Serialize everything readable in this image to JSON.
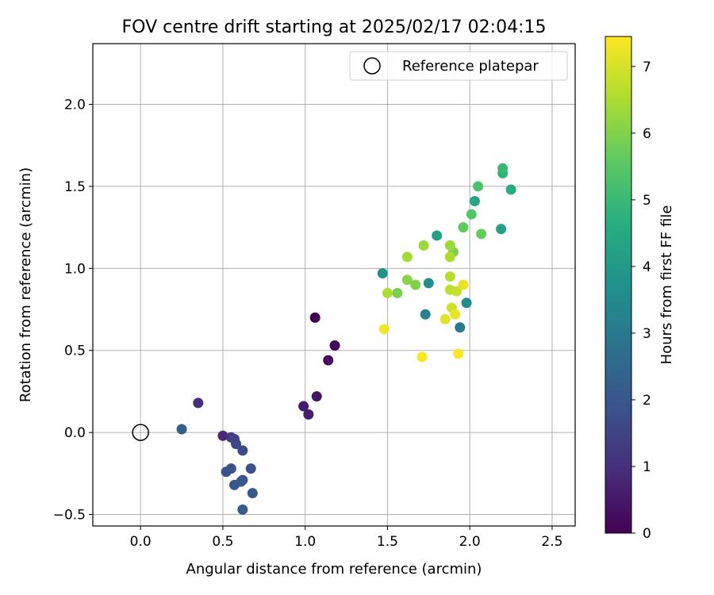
{
  "chart_data": {
    "type": "scatter",
    "title": "FOV centre drift starting at 2025/02/17 02:04:15",
    "xlabel": "Angular distance from reference (arcmin)",
    "ylabel": "Rotation from reference (arcmin)",
    "xlim": [
      -0.29,
      2.64
    ],
    "ylim": [
      -0.57,
      2.37
    ],
    "xticks": [
      0.0,
      0.5,
      1.0,
      1.5,
      2.0,
      2.5
    ],
    "xtick_labels": [
      "0.0",
      "0.5",
      "1.0",
      "1.5",
      "2.0",
      "2.5"
    ],
    "yticks": [
      -0.5,
      0.0,
      0.5,
      1.0,
      1.5,
      2.0
    ],
    "ytick_labels": [
      "−0.5",
      "0.0",
      "0.5",
      "1.0",
      "1.5",
      "2.0"
    ],
    "grid": true,
    "legend": {
      "placement": "upper-right",
      "entries": [
        {
          "label": "Reference platepar",
          "marker": "open-circle"
        }
      ]
    },
    "reference_point": {
      "x": 0.0,
      "y": 0.0
    },
    "colorbar": {
      "label": "Hours from first FF file",
      "colormap": "viridis",
      "range": [
        0,
        7.45
      ],
      "ticks": [
        0,
        1,
        2,
        3,
        4,
        5,
        6,
        7
      ],
      "tick_labels": [
        "0",
        "1",
        "2",
        "3",
        "4",
        "5",
        "6",
        "7"
      ]
    },
    "points": [
      {
        "x": 1.06,
        "y": 0.7,
        "h": 0.0
      },
      {
        "x": 1.18,
        "y": 0.53,
        "h": 0.1
      },
      {
        "x": 1.14,
        "y": 0.44,
        "h": 0.2
      },
      {
        "x": 1.07,
        "y": 0.22,
        "h": 0.4
      },
      {
        "x": 0.99,
        "y": 0.16,
        "h": 0.5
      },
      {
        "x": 1.02,
        "y": 0.11,
        "h": 0.6
      },
      {
        "x": 0.5,
        "y": -0.02,
        "h": 0.8
      },
      {
        "x": 0.35,
        "y": 0.18,
        "h": 1.0
      },
      {
        "x": 0.55,
        "y": -0.03,
        "h": 1.2
      },
      {
        "x": 0.57,
        "y": -0.04,
        "h": 1.5
      },
      {
        "x": 0.58,
        "y": -0.07,
        "h": 1.6
      },
      {
        "x": 0.62,
        "y": -0.11,
        "h": 1.7
      },
      {
        "x": 0.67,
        "y": -0.22,
        "h": 1.8
      },
      {
        "x": 0.55,
        "y": -0.22,
        "h": 1.8
      },
      {
        "x": 0.52,
        "y": -0.24,
        "h": 1.9
      },
      {
        "x": 0.62,
        "y": -0.29,
        "h": 1.9
      },
      {
        "x": 0.61,
        "y": -0.3,
        "h": 2.0
      },
      {
        "x": 0.57,
        "y": -0.32,
        "h": 2.0
      },
      {
        "x": 0.68,
        "y": -0.37,
        "h": 2.1
      },
      {
        "x": 0.62,
        "y": -0.47,
        "h": 2.1
      },
      {
        "x": 0.25,
        "y": 0.02,
        "h": 2.2
      },
      {
        "x": 1.94,
        "y": 0.64,
        "h": 3.1
      },
      {
        "x": 1.73,
        "y": 0.72,
        "h": 3.3
      },
      {
        "x": 1.98,
        "y": 0.79,
        "h": 3.6
      },
      {
        "x": 1.75,
        "y": 0.91,
        "h": 3.7
      },
      {
        "x": 1.47,
        "y": 0.97,
        "h": 3.8
      },
      {
        "x": 2.19,
        "y": 1.24,
        "h": 4.2
      },
      {
        "x": 1.8,
        "y": 1.2,
        "h": 4.2
      },
      {
        "x": 2.03,
        "y": 1.41,
        "h": 4.4
      },
      {
        "x": 2.25,
        "y": 1.48,
        "h": 4.6
      },
      {
        "x": 2.2,
        "y": 1.58,
        "h": 4.8
      },
      {
        "x": 2.2,
        "y": 1.61,
        "h": 5.0
      },
      {
        "x": 2.05,
        "y": 1.5,
        "h": 5.3
      },
      {
        "x": 2.01,
        "y": 1.33,
        "h": 5.4
      },
      {
        "x": 1.96,
        "y": 1.25,
        "h": 5.6
      },
      {
        "x": 2.07,
        "y": 1.21,
        "h": 5.7
      },
      {
        "x": 1.9,
        "y": 1.1,
        "h": 5.9
      },
      {
        "x": 1.56,
        "y": 0.85,
        "h": 5.9
      },
      {
        "x": 1.67,
        "y": 0.9,
        "h": 6.0
      },
      {
        "x": 1.62,
        "y": 0.93,
        "h": 6.1
      },
      {
        "x": 1.72,
        "y": 1.14,
        "h": 6.3
      },
      {
        "x": 1.88,
        "y": 1.14,
        "h": 6.3
      },
      {
        "x": 1.62,
        "y": 1.07,
        "h": 6.4
      },
      {
        "x": 1.88,
        "y": 1.07,
        "h": 6.5
      },
      {
        "x": 1.5,
        "y": 0.85,
        "h": 6.5
      },
      {
        "x": 1.88,
        "y": 0.95,
        "h": 6.6
      },
      {
        "x": 1.88,
        "y": 0.87,
        "h": 6.7
      },
      {
        "x": 1.92,
        "y": 0.86,
        "h": 6.8
      },
      {
        "x": 1.89,
        "y": 0.76,
        "h": 6.9
      },
      {
        "x": 1.85,
        "y": 0.69,
        "h": 7.1
      },
      {
        "x": 1.91,
        "y": 0.72,
        "h": 7.2
      },
      {
        "x": 1.96,
        "y": 0.9,
        "h": 7.2
      },
      {
        "x": 1.48,
        "y": 0.63,
        "h": 7.3
      },
      {
        "x": 1.71,
        "y": 0.46,
        "h": 7.4
      },
      {
        "x": 1.93,
        "y": 0.48,
        "h": 7.4
      }
    ]
  }
}
